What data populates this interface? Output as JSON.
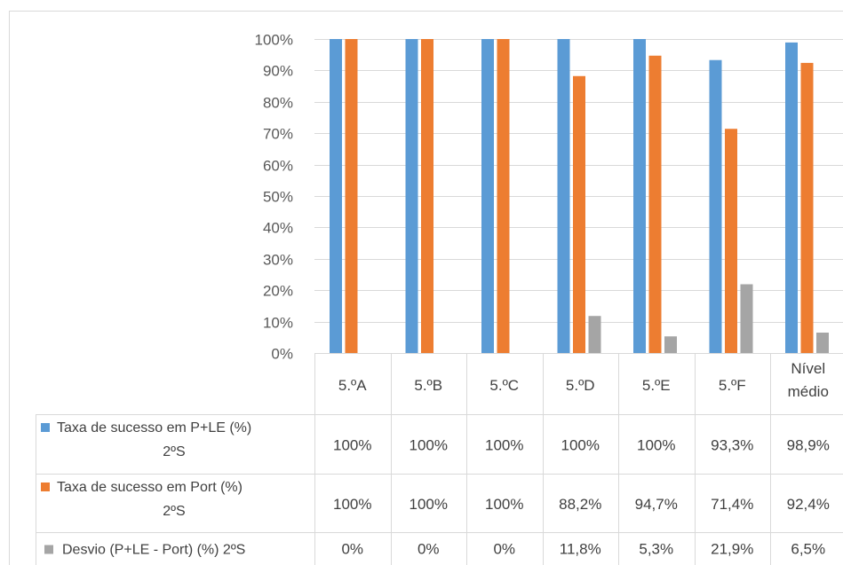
{
  "chart_data": {
    "type": "bar",
    "categories": [
      "5.ºA",
      "5.ºB",
      "5.ºC",
      "5.ºD",
      "5.ºE",
      "5.ºF",
      [
        "Nível",
        "médio"
      ]
    ],
    "series": [
      {
        "name": [
          "Taxa de sucesso em P+LE (%)",
          "2ºS"
        ],
        "color": "#5B9BD5",
        "values": [
          100,
          100,
          100,
          100,
          100,
          93.3,
          98.9
        ],
        "labels": [
          "100%",
          "100%",
          "100%",
          "100%",
          "100%",
          "93,3%",
          "98,9%"
        ]
      },
      {
        "name": [
          "Taxa de sucesso em Port (%)",
          "2ºS"
        ],
        "color": "#ED7D31",
        "values": [
          100,
          100,
          100,
          88.2,
          94.7,
          71.4,
          92.4
        ],
        "labels": [
          "100%",
          "100%",
          "100%",
          "88,2%",
          "94,7%",
          "71,4%",
          "92,4%"
        ]
      },
      {
        "name": [
          "Desvio (P+LE - Port) (%) 2ºS"
        ],
        "color": "#A5A5A5",
        "values": [
          0,
          0,
          0,
          11.8,
          5.3,
          21.9,
          6.5
        ],
        "labels": [
          "0%",
          "0%",
          "0%",
          "11,8%",
          "5,3%",
          "21,9%",
          "6,5%"
        ]
      }
    ],
    "ylim": [
      0,
      100
    ],
    "yticks": [
      0,
      10,
      20,
      30,
      40,
      50,
      60,
      70,
      80,
      90,
      100
    ],
    "ytick_labels": [
      "0%",
      "10%",
      "20%",
      "30%",
      "40%",
      "50%",
      "60%",
      "70%",
      "80%",
      "90%",
      "100%"
    ],
    "grid": true,
    "legend": "data table"
  }
}
